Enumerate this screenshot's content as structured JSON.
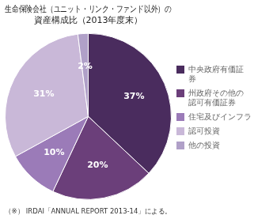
{
  "chart_data": {
    "type": "pie",
    "title": "生命保険会社（ユニット・リンク・ファンド以外）の\n資産構成比（2013年度末）",
    "annotations": [
      "（※） IRDAI「ANNUAL REPORT 2013-14」による。"
    ],
    "categories": [
      "中央政府有価証\n券",
      "州政府その他の\n認可有価証券",
      "住宅及びインフラ",
      "認可投資",
      "他の投資"
    ],
    "values": [
      37,
      20,
      10,
      31,
      2
    ],
    "value_labels": [
      "37%",
      "20%",
      "10%",
      "31%",
      "2%"
    ],
    "colors": [
      "#4a2c5e",
      "#6b3f7a",
      "#9b7bb8",
      "#c9b8d8",
      "#b0a0c8"
    ],
    "data_labels": true,
    "legend": "right"
  }
}
